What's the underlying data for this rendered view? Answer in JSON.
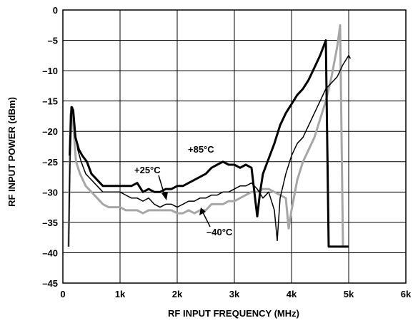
{
  "chart_data": {
    "type": "line",
    "title": "",
    "xlabel": "RF INPUT FREQUENCY (MHz)",
    "ylabel": "RF INPUT POWER (dBm)",
    "xlim": [
      0,
      6000
    ],
    "ylim": [
      -45,
      0
    ],
    "xticks": [
      0,
      1000,
      2000,
      3000,
      4000,
      5000,
      6000
    ],
    "xtick_labels": [
      "0",
      "1k",
      "2k",
      "3k",
      "4k",
      "5k",
      "6k"
    ],
    "yticks": [
      0,
      -5,
      -10,
      -15,
      -20,
      -25,
      -30,
      -35,
      -40,
      -45
    ],
    "ytick_labels": [
      "0",
      "–5",
      "–10",
      "–15",
      "–20",
      "–25",
      "–30",
      "–35",
      "–40",
      "–45"
    ],
    "grid": true,
    "legend": "none",
    "annotations": [
      "+85°C",
      "+25°C",
      "–40°C"
    ],
    "series": [
      {
        "name": "+85°C",
        "color": "#000000",
        "weight": "heavy",
        "points": [
          [
            120,
            -24
          ],
          [
            150,
            -16
          ],
          [
            180,
            -16.5
          ],
          [
            220,
            -21
          ],
          [
            280,
            -23
          ],
          [
            340,
            -24
          ],
          [
            420,
            -25
          ],
          [
            500,
            -27
          ],
          [
            600,
            -28
          ],
          [
            700,
            -29
          ],
          [
            800,
            -29
          ],
          [
            900,
            -29
          ],
          [
            1000,
            -29
          ],
          [
            1100,
            -29
          ],
          [
            1200,
            -29
          ],
          [
            1300,
            -28.5
          ],
          [
            1400,
            -30
          ],
          [
            1500,
            -29.5
          ],
          [
            1600,
            -30
          ],
          [
            1700,
            -30
          ],
          [
            1800,
            -29.5
          ],
          [
            1900,
            -29.5
          ],
          [
            2000,
            -29
          ],
          [
            2100,
            -29
          ],
          [
            2200,
            -28.5
          ],
          [
            2300,
            -28
          ],
          [
            2400,
            -27.5
          ],
          [
            2500,
            -27
          ],
          [
            2600,
            -26
          ],
          [
            2700,
            -25.5
          ],
          [
            2800,
            -25
          ],
          [
            2900,
            -25.5
          ],
          [
            3000,
            -25.5
          ],
          [
            3100,
            -26
          ],
          [
            3200,
            -25.5
          ],
          [
            3300,
            -26
          ],
          [
            3400,
            -34
          ],
          [
            3450,
            -30
          ],
          [
            3500,
            -27
          ],
          [
            3600,
            -24.5
          ],
          [
            3700,
            -22
          ],
          [
            3800,
            -19
          ],
          [
            3900,
            -17
          ],
          [
            4000,
            -15.5
          ],
          [
            4100,
            -14
          ],
          [
            4200,
            -13
          ],
          [
            4300,
            -11.5
          ],
          [
            4400,
            -9.5
          ],
          [
            4500,
            -7.5
          ],
          [
            4600,
            -5
          ],
          [
            4650,
            -39
          ],
          [
            4750,
            -39
          ],
          [
            4900,
            -39
          ],
          [
            5000,
            -39
          ]
        ]
      },
      {
        "name": "+25°C",
        "color": "#000000",
        "weight": "thin",
        "points": [
          [
            100,
            -39
          ],
          [
            140,
            -17
          ],
          [
            170,
            -16
          ],
          [
            210,
            -20
          ],
          [
            260,
            -23
          ],
          [
            320,
            -25
          ],
          [
            400,
            -27
          ],
          [
            500,
            -28
          ],
          [
            600,
            -29
          ],
          [
            700,
            -30
          ],
          [
            800,
            -30
          ],
          [
            900,
            -30
          ],
          [
            1000,
            -30
          ],
          [
            1100,
            -30.5
          ],
          [
            1200,
            -31
          ],
          [
            1300,
            -31
          ],
          [
            1400,
            -31.5
          ],
          [
            1500,
            -31
          ],
          [
            1600,
            -32
          ],
          [
            1700,
            -32.5
          ],
          [
            1800,
            -32
          ],
          [
            1900,
            -32
          ],
          [
            2000,
            -32.5
          ],
          [
            2100,
            -32
          ],
          [
            2200,
            -31.5
          ],
          [
            2300,
            -31.5
          ],
          [
            2400,
            -31
          ],
          [
            2500,
            -31
          ],
          [
            2600,
            -30.5
          ],
          [
            2700,
            -30.5
          ],
          [
            2800,
            -30
          ],
          [
            2900,
            -30
          ],
          [
            3000,
            -29.5
          ],
          [
            3100,
            -29
          ],
          [
            3200,
            -29
          ],
          [
            3300,
            -28.5
          ],
          [
            3400,
            -29.5
          ],
          [
            3500,
            -31
          ],
          [
            3600,
            -30
          ],
          [
            3700,
            -33
          ],
          [
            3750,
            -38
          ],
          [
            3800,
            -31
          ],
          [
            3900,
            -27
          ],
          [
            4000,
            -24
          ],
          [
            4100,
            -22
          ],
          [
            4200,
            -21
          ],
          [
            4300,
            -19
          ],
          [
            4400,
            -17
          ],
          [
            4500,
            -15
          ],
          [
            4600,
            -13
          ],
          [
            4700,
            -12
          ],
          [
            4800,
            -11
          ],
          [
            4900,
            -9
          ],
          [
            5000,
            -7.5
          ],
          [
            5030,
            -8
          ]
        ]
      },
      {
        "name": "–40°C",
        "color": "#a6a6a6",
        "weight": "heavy",
        "points": [
          [
            100,
            -39
          ],
          [
            130,
            -17.5
          ],
          [
            160,
            -16
          ],
          [
            190,
            -20
          ],
          [
            230,
            -25
          ],
          [
            300,
            -27
          ],
          [
            400,
            -29
          ],
          [
            500,
            -30
          ],
          [
            600,
            -31
          ],
          [
            700,
            -32
          ],
          [
            800,
            -32.5
          ],
          [
            900,
            -32.5
          ],
          [
            1000,
            -32.5
          ],
          [
            1100,
            -33
          ],
          [
            1200,
            -33
          ],
          [
            1300,
            -33
          ],
          [
            1400,
            -33.5
          ],
          [
            1500,
            -33
          ],
          [
            1600,
            -33
          ],
          [
            1700,
            -33
          ],
          [
            1800,
            -33
          ],
          [
            1900,
            -33
          ],
          [
            2000,
            -33.5
          ],
          [
            2100,
            -33.5
          ],
          [
            2200,
            -33
          ],
          [
            2300,
            -33.5
          ],
          [
            2400,
            -33
          ],
          [
            2500,
            -33
          ],
          [
            2600,
            -32
          ],
          [
            2700,
            -32
          ],
          [
            2800,
            -32
          ],
          [
            2900,
            -31.5
          ],
          [
            3000,
            -31.5
          ],
          [
            3100,
            -31
          ],
          [
            3200,
            -30.5
          ],
          [
            3300,
            -30
          ],
          [
            3400,
            -30
          ],
          [
            3500,
            -29.5
          ],
          [
            3600,
            -29.5
          ],
          [
            3700,
            -30
          ],
          [
            3800,
            -30.5
          ],
          [
            3900,
            -31
          ],
          [
            3950,
            -36
          ],
          [
            4000,
            -33
          ],
          [
            4100,
            -28
          ],
          [
            4200,
            -25
          ],
          [
            4300,
            -23
          ],
          [
            4400,
            -21
          ],
          [
            4500,
            -18
          ],
          [
            4600,
            -15
          ],
          [
            4700,
            -11
          ],
          [
            4800,
            -6
          ],
          [
            4850,
            -2.5
          ],
          [
            4900,
            -39
          ],
          [
            4950,
            -39
          ],
          [
            5000,
            -39
          ]
        ]
      }
    ]
  }
}
